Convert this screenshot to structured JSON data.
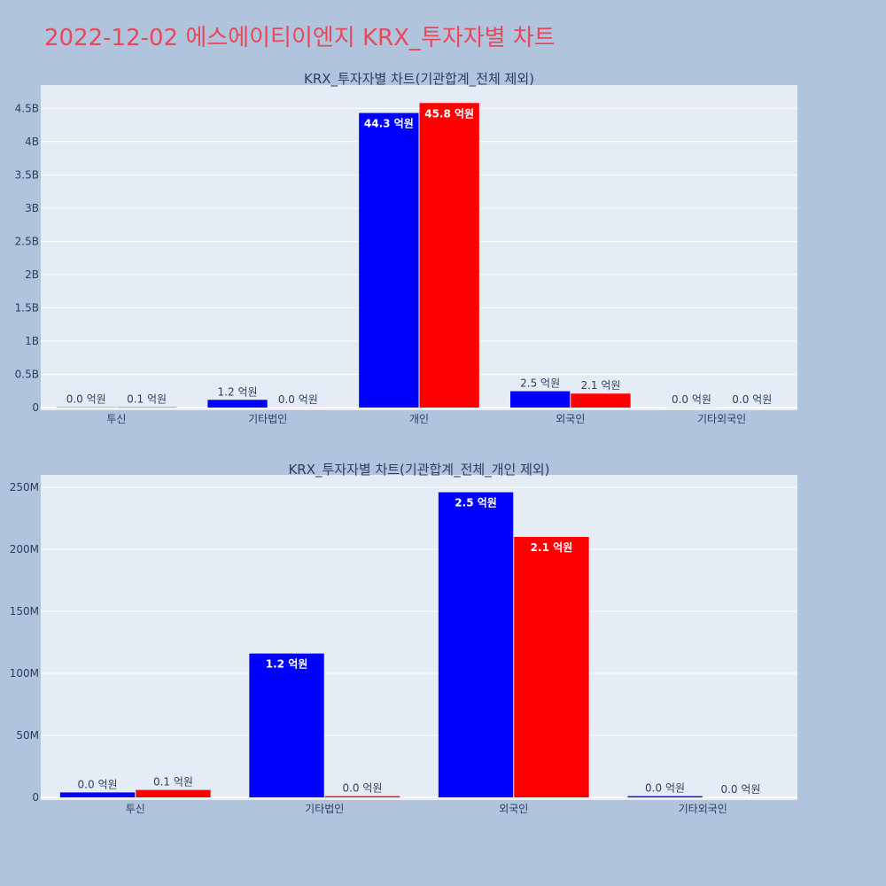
{
  "page": {
    "title": "2022-12-02 에스에이티이엔지 KRX_투자자별 차트"
  },
  "colors": {
    "background": "#b0c4de",
    "plot_bg": "#e5ecf6",
    "title": "#e8495a",
    "series_a": "#0000ff",
    "series_b": "#ff0000"
  },
  "chart_data": [
    {
      "type": "bar",
      "title": "KRX_투자자별 차트(기관합계_전체 제외)",
      "categories": [
        "투신",
        "기타법인",
        "개인",
        "외국인",
        "기타외국인"
      ],
      "ylim": [
        0,
        4850000000
      ],
      "yticks": [
        0,
        500000000,
        1000000000,
        1500000000,
        2000000000,
        2500000000,
        3000000000,
        3500000000,
        4000000000,
        4500000000
      ],
      "ytick_labels": [
        "0",
        "0.5B",
        "1B",
        "1.5B",
        "2B",
        "2.5B",
        "3B",
        "3.5B",
        "4B",
        "4.5B"
      ],
      "grid": true,
      "series": [
        {
          "color": "#0000ff",
          "values": [
            4000000,
            116000000,
            4430000000,
            246000000,
            1000000
          ],
          "labels": [
            "0.0 억원",
            "1.2 억원",
            "44.3 억원",
            "2.5 억원",
            "0.0 억원"
          ]
        },
        {
          "color": "#ff0000",
          "values": [
            6000000,
            1000000,
            4580000000,
            210000000,
            0
          ],
          "labels": [
            "0.1 억원",
            "0.0 억원",
            "45.8 억원",
            "2.1 억원",
            "0.0 억원"
          ]
        }
      ]
    },
    {
      "type": "bar",
      "title": "KRX_투자자별 차트(기관합계_전체_개인 제외)",
      "categories": [
        "투신",
        "기타법인",
        "외국인",
        "기타외국인"
      ],
      "ylim": [
        0,
        260000000
      ],
      "yticks": [
        0,
        50000000,
        100000000,
        150000000,
        200000000,
        250000000
      ],
      "ytick_labels": [
        "0",
        "50M",
        "100M",
        "150M",
        "200M",
        "250M"
      ],
      "grid": true,
      "series": [
        {
          "color": "#0000ff",
          "values": [
            4000000,
            116000000,
            246000000,
            1000000
          ],
          "labels": [
            "0.0 억원",
            "1.2 억원",
            "2.5 억원",
            "0.0 억원"
          ]
        },
        {
          "color": "#ff0000",
          "values": [
            6000000,
            1000000,
            210000000,
            0
          ],
          "labels": [
            "0.1 억원",
            "0.0 억원",
            "2.1 억원",
            "0.0 억원"
          ]
        }
      ]
    }
  ]
}
